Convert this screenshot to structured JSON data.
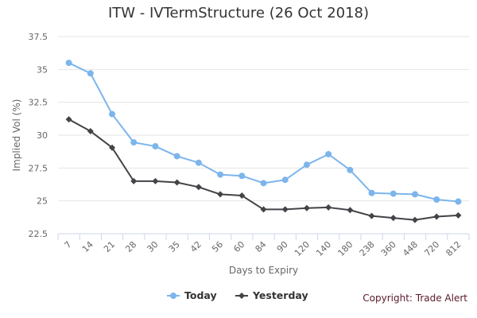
{
  "chart_data": {
    "type": "line",
    "title": "ITW - IVTermStructure (26 Oct 2018)",
    "xlabel": "Days to Expiry",
    "ylabel": "Implied Vol (%)",
    "categories": [
      "7",
      "14",
      "21",
      "28",
      "30",
      "35",
      "42",
      "56",
      "60",
      "84",
      "90",
      "120",
      "140",
      "180",
      "238",
      "360",
      "448",
      "720",
      "812"
    ],
    "ylim": [
      22.5,
      37.5
    ],
    "yticks": [
      "22.5",
      "25",
      "27.5",
      "30",
      "32.5",
      "35",
      "37.5"
    ],
    "grid": true,
    "legend_position": "bottom",
    "series": [
      {
        "name": "Today",
        "color": "#7cb5ec",
        "marker": "circle",
        "values": [
          35.5,
          34.7,
          31.6,
          29.45,
          29.15,
          28.4,
          27.9,
          27.0,
          26.9,
          26.35,
          26.6,
          27.75,
          28.55,
          27.35,
          25.6,
          25.55,
          25.5,
          25.1,
          24.95
        ]
      },
      {
        "name": "Yesterday",
        "color": "#434348",
        "marker": "diamond",
        "values": [
          31.2,
          30.3,
          29.05,
          26.5,
          26.5,
          26.4,
          26.05,
          25.5,
          25.4,
          24.35,
          24.35,
          24.45,
          24.5,
          24.3,
          23.85,
          23.7,
          23.55,
          23.8,
          23.9
        ]
      }
    ]
  },
  "copyright": "Copyright: Trade Alert"
}
